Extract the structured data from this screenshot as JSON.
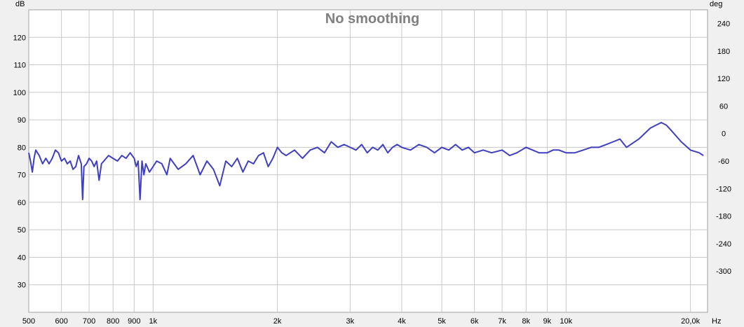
{
  "chart_data": {
    "type": "line",
    "title": "No smoothing",
    "y_unit_left": "dB",
    "y_unit_right": "deg",
    "x_unit": "Hz",
    "x_scale": "log",
    "xlim": [
      500,
      22000
    ],
    "ylim": [
      20,
      130
    ],
    "ylim_right": [
      -390,
      270
    ],
    "grid": true,
    "x_ticks": [
      {
        "value": 500,
        "label": "500"
      },
      {
        "value": 600,
        "label": "600"
      },
      {
        "value": 700,
        "label": "700"
      },
      {
        "value": 800,
        "label": "800"
      },
      {
        "value": 900,
        "label": "900"
      },
      {
        "value": 1000,
        "label": "1k"
      },
      {
        "value": 2000,
        "label": "2k"
      },
      {
        "value": 3000,
        "label": "3k"
      },
      {
        "value": 4000,
        "label": "4k"
      },
      {
        "value": 5000,
        "label": "5k"
      },
      {
        "value": 6000,
        "label": "6k"
      },
      {
        "value": 7000,
        "label": "7k"
      },
      {
        "value": 8000,
        "label": "8k"
      },
      {
        "value": 9000,
        "label": "9k"
      },
      {
        "value": 10000,
        "label": "10k"
      },
      {
        "value": 20000,
        "label": "20,0k"
      }
    ],
    "y_ticks_left": [
      {
        "value": 30,
        "label": "30"
      },
      {
        "value": 40,
        "label": "40"
      },
      {
        "value": 50,
        "label": "50"
      },
      {
        "value": 60,
        "label": "60"
      },
      {
        "value": 70,
        "label": "70"
      },
      {
        "value": 80,
        "label": "80"
      },
      {
        "value": 90,
        "label": "90"
      },
      {
        "value": 100,
        "label": "100"
      },
      {
        "value": 110,
        "label": "110"
      },
      {
        "value": 120,
        "label": "120"
      }
    ],
    "y_ticks_right": [
      {
        "value": -300,
        "label": "-300"
      },
      {
        "value": -240,
        "label": "-240"
      },
      {
        "value": -180,
        "label": "-180"
      },
      {
        "value": -120,
        "label": "-120"
      },
      {
        "value": -60,
        "label": "-60"
      },
      {
        "value": 0,
        "label": "0"
      },
      {
        "value": 60,
        "label": "60"
      },
      {
        "value": 120,
        "label": "120"
      },
      {
        "value": 180,
        "label": "180"
      },
      {
        "value": 240,
        "label": "240"
      }
    ],
    "series": [
      {
        "color": "#3f3fbf",
        "points": [
          [
            500,
            78
          ],
          [
            505,
            75
          ],
          [
            510,
            71
          ],
          [
            515,
            76
          ],
          [
            520,
            79
          ],
          [
            530,
            77
          ],
          [
            540,
            74
          ],
          [
            550,
            76
          ],
          [
            560,
            74
          ],
          [
            570,
            76
          ],
          [
            580,
            79
          ],
          [
            590,
            78
          ],
          [
            600,
            75
          ],
          [
            610,
            76
          ],
          [
            620,
            74
          ],
          [
            630,
            75
          ],
          [
            640,
            72
          ],
          [
            650,
            73
          ],
          [
            660,
            77
          ],
          [
            670,
            74
          ],
          [
            675,
            61
          ],
          [
            680,
            73
          ],
          [
            690,
            74
          ],
          [
            700,
            76
          ],
          [
            710,
            75
          ],
          [
            720,
            73
          ],
          [
            730,
            75
          ],
          [
            740,
            68
          ],
          [
            750,
            74
          ],
          [
            760,
            75
          ],
          [
            780,
            77
          ],
          [
            800,
            76
          ],
          [
            820,
            75
          ],
          [
            840,
            77
          ],
          [
            860,
            76
          ],
          [
            880,
            78
          ],
          [
            900,
            76
          ],
          [
            910,
            73
          ],
          [
            920,
            75
          ],
          [
            930,
            61
          ],
          [
            940,
            75
          ],
          [
            950,
            70
          ],
          [
            960,
            74
          ],
          [
            980,
            71
          ],
          [
            1000,
            73
          ],
          [
            1020,
            75
          ],
          [
            1050,
            74
          ],
          [
            1080,
            70
          ],
          [
            1100,
            76
          ],
          [
            1150,
            72
          ],
          [
            1200,
            74
          ],
          [
            1250,
            77
          ],
          [
            1300,
            70
          ],
          [
            1350,
            75
          ],
          [
            1400,
            72
          ],
          [
            1450,
            66
          ],
          [
            1500,
            75
          ],
          [
            1550,
            73
          ],
          [
            1600,
            76
          ],
          [
            1650,
            71
          ],
          [
            1700,
            75
          ],
          [
            1750,
            74
          ],
          [
            1800,
            77
          ],
          [
            1850,
            78
          ],
          [
            1900,
            73
          ],
          [
            1950,
            76
          ],
          [
            2000,
            80
          ],
          [
            2050,
            78
          ],
          [
            2100,
            77
          ],
          [
            2200,
            79
          ],
          [
            2300,
            76
          ],
          [
            2400,
            79
          ],
          [
            2500,
            80
          ],
          [
            2600,
            78
          ],
          [
            2700,
            82
          ],
          [
            2800,
            80
          ],
          [
            2900,
            81
          ],
          [
            3000,
            80
          ],
          [
            3100,
            79
          ],
          [
            3200,
            81
          ],
          [
            3300,
            78
          ],
          [
            3400,
            80
          ],
          [
            3500,
            79
          ],
          [
            3600,
            81
          ],
          [
            3700,
            78
          ],
          [
            3800,
            80
          ],
          [
            3900,
            81
          ],
          [
            4000,
            80
          ],
          [
            4200,
            79
          ],
          [
            4400,
            81
          ],
          [
            4600,
            80
          ],
          [
            4800,
            78
          ],
          [
            5000,
            80
          ],
          [
            5200,
            79
          ],
          [
            5400,
            81
          ],
          [
            5600,
            79
          ],
          [
            5800,
            80
          ],
          [
            6000,
            78
          ],
          [
            6300,
            79
          ],
          [
            6600,
            78
          ],
          [
            7000,
            79
          ],
          [
            7300,
            77
          ],
          [
            7600,
            78
          ],
          [
            8000,
            80
          ],
          [
            8300,
            79
          ],
          [
            8600,
            78
          ],
          [
            9000,
            78
          ],
          [
            9300,
            79
          ],
          [
            9600,
            79
          ],
          [
            10000,
            78
          ],
          [
            10500,
            78
          ],
          [
            11000,
            79
          ],
          [
            11500,
            80
          ],
          [
            12000,
            80
          ],
          [
            12500,
            81
          ],
          [
            13000,
            82
          ],
          [
            13500,
            83
          ],
          [
            14000,
            80
          ],
          [
            15000,
            83
          ],
          [
            16000,
            87
          ],
          [
            17000,
            89
          ],
          [
            17500,
            88
          ],
          [
            18000,
            86
          ],
          [
            19000,
            82
          ],
          [
            20000,
            79
          ],
          [
            21000,
            78
          ],
          [
            21500,
            77
          ]
        ]
      }
    ]
  }
}
